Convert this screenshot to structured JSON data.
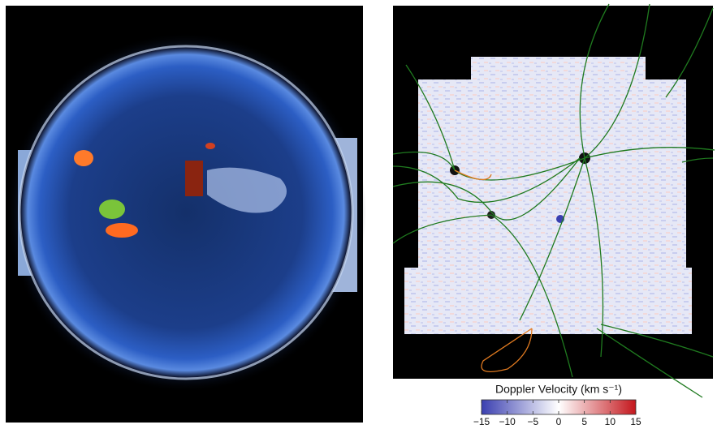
{
  "colorbar": {
    "title": "Doppler Velocity (km s⁻¹)",
    "lim": [
      -15,
      15
    ],
    "ticks": [
      {
        "value": -15,
        "label": "−15"
      },
      {
        "value": -10,
        "label": "−10"
      },
      {
        "value": -5,
        "label": "−5"
      },
      0,
      5,
      10,
      15
    ],
    "colors": [
      "#3a3fb0",
      "#ffffff",
      "#c4161c"
    ]
  }
}
